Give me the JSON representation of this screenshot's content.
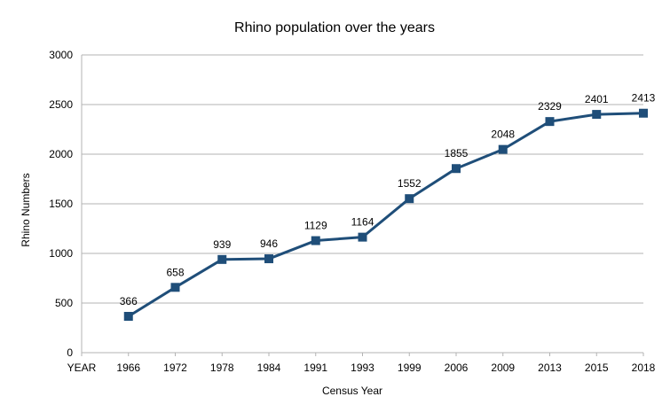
{
  "chart_data": {
    "type": "line",
    "title": "Rhino population over the years",
    "xlabel": "Census Year",
    "ylabel": "Rhino Numbers",
    "categories": [
      "YEAR",
      "1966",
      "1972",
      "1978",
      "1984",
      "1991",
      "1993",
      "1999",
      "2006",
      "2009",
      "2013",
      "2015",
      "2018"
    ],
    "series": [
      {
        "values": [
          null,
          366,
          658,
          939,
          946,
          1129,
          1164,
          1552,
          1855,
          2048,
          2329,
          2401,
          2413
        ]
      }
    ],
    "data_labels": [
      "",
      "366",
      "658",
      "939",
      "946",
      "1129",
      "1164",
      "1552",
      "1855",
      "2048",
      "2329",
      "2401",
      "2413"
    ],
    "ylim": [
      0,
      3000
    ],
    "yticks": [
      "0",
      "500",
      "1000",
      "1500",
      "2000",
      "2500",
      "3000"
    ],
    "grid": true,
    "legend": "none",
    "marker": "square",
    "colors": {
      "series": "#1f4e79",
      "grid": "#b3b3b3",
      "axis": "#b3b3b3"
    }
  }
}
